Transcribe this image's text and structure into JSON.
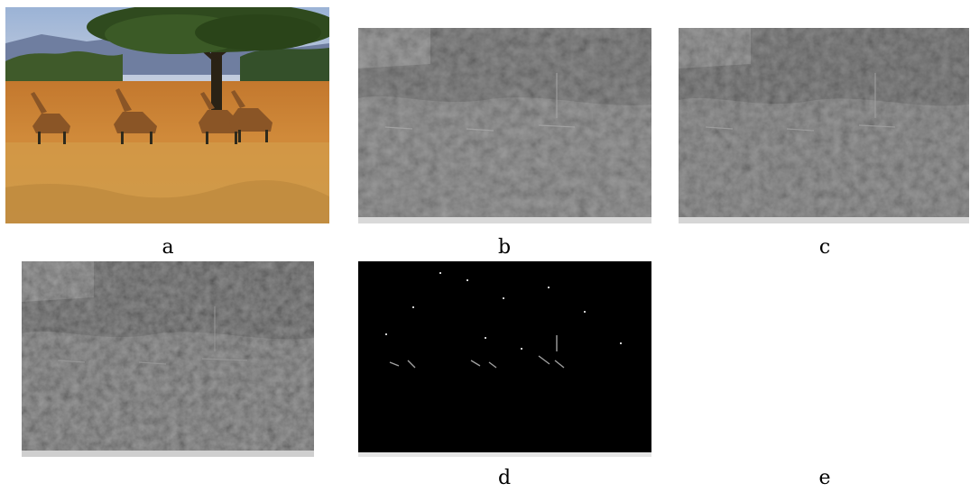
{
  "figure": {
    "panels": [
      {
        "id": "a",
        "caption": "a",
        "content": "savanna-photo"
      },
      {
        "id": "b",
        "caption": "b",
        "content": "grayscale-relief-map"
      },
      {
        "id": "c",
        "caption": "c",
        "content": "grayscale-relief-map"
      },
      {
        "id": "d",
        "caption": "d",
        "content": "grayscale-relief-map"
      },
      {
        "id": "e",
        "caption": "e",
        "content": "dark-sparse-edge-map"
      }
    ]
  }
}
